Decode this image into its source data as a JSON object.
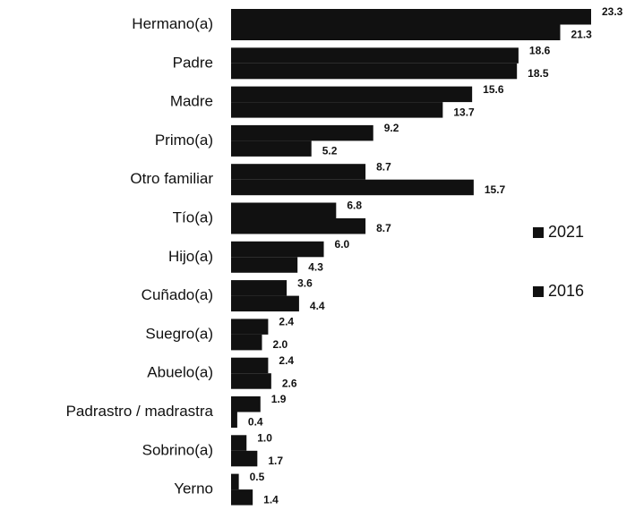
{
  "chart_data": {
    "type": "bar",
    "orientation": "horizontal",
    "categories": [
      "Hermano(a)",
      "Padre",
      "Madre",
      "Primo(a)",
      "Otro familiar",
      "Tío(a)",
      "Hijo(a)",
      "Cuñado(a)",
      "Suegro(a)",
      "Abuelo(a)",
      "Padrastro / madrastra",
      "Sobrino(a)",
      "Yerno"
    ],
    "series": [
      {
        "name": "2021",
        "color": "#111111",
        "values": [
          23.3,
          18.6,
          15.6,
          9.2,
          8.7,
          6.8,
          6.0,
          3.6,
          2.4,
          2.4,
          1.9,
          1.0,
          0.5
        ],
        "value_labels": [
          "23.3",
          "18.6",
          "15.6",
          "9.2",
          "8.7",
          "6.8",
          "6.0",
          "3.6",
          "2.4",
          "2.4",
          "1.9",
          "1.0",
          "0.5"
        ]
      },
      {
        "name": "2016",
        "color": "#111111",
        "values": [
          21.3,
          18.5,
          13.7,
          5.2,
          15.7,
          8.7,
          4.3,
          4.4,
          2.0,
          2.6,
          0.4,
          1.7,
          1.4
        ],
        "value_labels": [
          "21.3",
          "18.5",
          "13.7",
          "5.2",
          "15.7",
          "8.7",
          "4.3",
          "4.4",
          "2.0",
          "2.6",
          "0.4",
          "1.7",
          "1.4"
        ]
      }
    ],
    "legend": "right"
  }
}
